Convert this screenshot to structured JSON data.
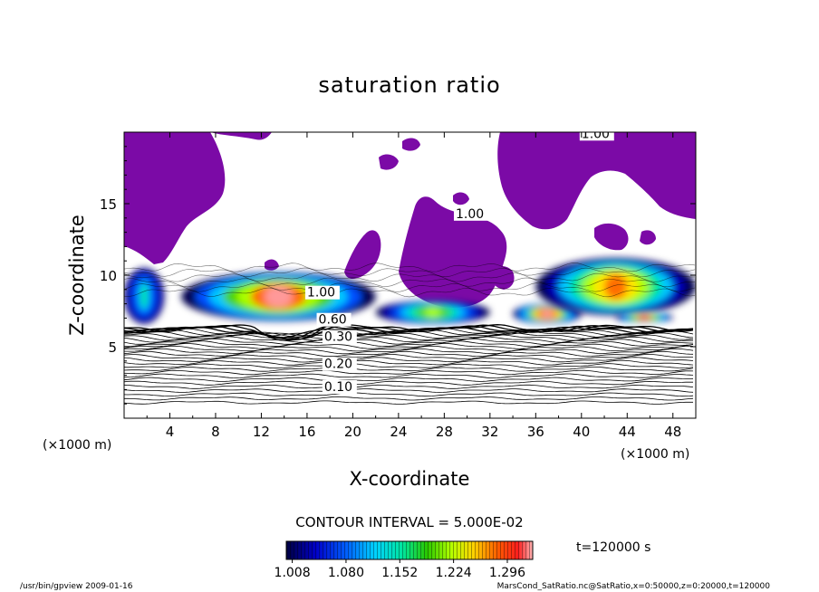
{
  "chart_data": {
    "type": "heatmap",
    "title": "saturation ratio",
    "xlabel": "X-coordinate",
    "ylabel": "Z-coordinate",
    "x_unit_label": "(×1000 m)",
    "z_unit_label": "(×1000 m)",
    "xlim": [
      0,
      50
    ],
    "ylim": [
      0,
      20
    ],
    "x_ticks": [
      "4",
      "8",
      "12",
      "16",
      "20",
      "24",
      "28",
      "32",
      "36",
      "40",
      "44",
      "48"
    ],
    "y_ticks": [
      "5",
      "10",
      "15"
    ],
    "contour_interval_text": "CONTOUR INTERVAL = 5.000E-02",
    "time_label": "t=120000 s",
    "colorbar": {
      "min": 1.0,
      "max": 1.33,
      "tick_labels": [
        "1.008",
        "1.080",
        "1.152",
        "1.224",
        "1.296"
      ]
    },
    "contour_labels": [
      {
        "text": "1.00",
        "x": 40,
        "z": 19.6
      },
      {
        "text": "1.00",
        "x": 29,
        "z": 14
      },
      {
        "text": "1.00",
        "x": 16,
        "z": 8.5
      },
      {
        "text": "0.60",
        "x": 17,
        "z": 6.6
      },
      {
        "text": "0.30",
        "x": 17.5,
        "z": 5.4
      },
      {
        "text": "0.20",
        "x": 17.5,
        "z": 3.5
      },
      {
        "text": "0.10",
        "x": 17.5,
        "z": 1.9
      }
    ],
    "supersaturated_layers": [
      {
        "x_start": 0,
        "x_end": 3.5,
        "z_min": 6.6,
        "z_max": 10.5,
        "peak": 1.12
      },
      {
        "x_start": 5,
        "x_end": 22,
        "z_min": 6.8,
        "z_max": 10.2,
        "peak": 1.32
      },
      {
        "x_start": 22,
        "x_end": 32,
        "z_min": 6.6,
        "z_max": 8.2,
        "peak": 1.2
      },
      {
        "x_start": 34,
        "x_end": 40,
        "z_min": 6.6,
        "z_max": 8.0,
        "peak": 1.33
      },
      {
        "x_start": 36,
        "x_end": 50,
        "z_min": 7.2,
        "z_max": 11.2,
        "peak": 1.28
      },
      {
        "x_start": 43,
        "x_end": 48,
        "z_min": 6.7,
        "z_max": 7.4,
        "peak": 1.3
      }
    ]
  },
  "footer": {
    "left": "/usr/bin/gpview  2009-01-16",
    "right": "MarsCond_SatRatio.nc@SatRatio,x=0:50000,z=0:20000,t=120000"
  },
  "colors": {
    "saturated_fill": "#7b0aa6",
    "colormap": [
      "#000050",
      "#0000c0",
      "#0050ff",
      "#00c8ff",
      "#00e68c",
      "#46d200",
      "#aaff00",
      "#ffe600",
      "#ff6e00",
      "#ff2020",
      "#ff9999"
    ]
  }
}
